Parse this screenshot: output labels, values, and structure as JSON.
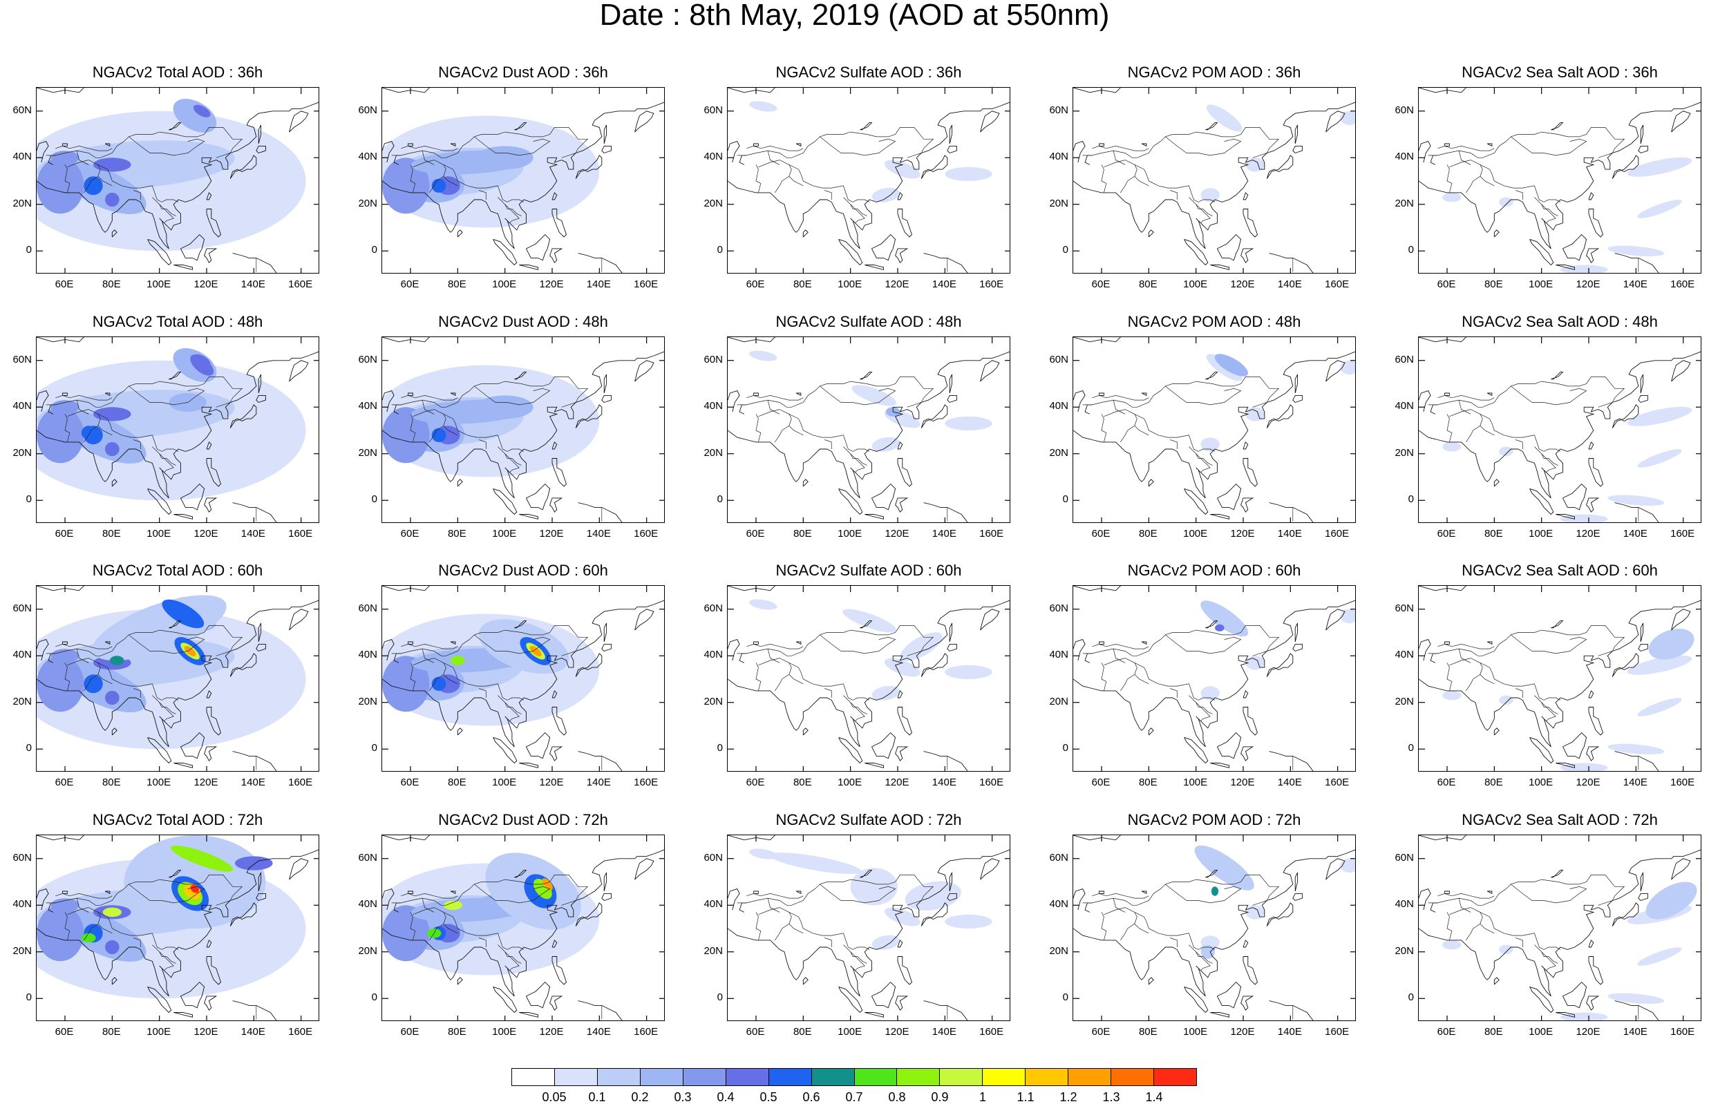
{
  "title": "Date : 8th May, 2019 (AOD at 550nm)",
  "lat_labels": [
    "60N",
    "40N",
    "20N",
    "0"
  ],
  "lon_labels": [
    "60E",
    "80E",
    "100E",
    "120E",
    "140E",
    "160E"
  ],
  "panels": [
    {
      "title": "NGACv2 Total AOD : 36h",
      "species": "total",
      "hour": 36
    },
    {
      "title": "NGACv2 Dust AOD : 36h",
      "species": "dust",
      "hour": 36
    },
    {
      "title": "NGACv2 Sulfate AOD : 36h",
      "species": "sulfate",
      "hour": 36
    },
    {
      "title": "NGACv2 POM AOD : 36h",
      "species": "pom",
      "hour": 36
    },
    {
      "title": "NGACv2 Sea Salt AOD : 36h",
      "species": "seasalt",
      "hour": 36
    },
    {
      "title": "NGACv2 Total AOD : 48h",
      "species": "total",
      "hour": 48
    },
    {
      "title": "NGACv2 Dust AOD : 48h",
      "species": "dust",
      "hour": 48
    },
    {
      "title": "NGACv2 Sulfate AOD : 48h",
      "species": "sulfate",
      "hour": 48
    },
    {
      "title": "NGACv2 POM AOD : 48h",
      "species": "pom",
      "hour": 48
    },
    {
      "title": "NGACv2 Sea Salt AOD : 48h",
      "species": "seasalt",
      "hour": 48
    },
    {
      "title": "NGACv2 Total AOD : 60h",
      "species": "total",
      "hour": 60
    },
    {
      "title": "NGACv2 Dust AOD : 60h",
      "species": "dust",
      "hour": 60
    },
    {
      "title": "NGACv2 Sulfate AOD : 60h",
      "species": "sulfate",
      "hour": 60
    },
    {
      "title": "NGACv2 POM AOD : 60h",
      "species": "pom",
      "hour": 60
    },
    {
      "title": "NGACv2 Sea Salt AOD : 60h",
      "species": "seasalt",
      "hour": 60
    },
    {
      "title": "NGACv2 Total AOD : 72h",
      "species": "total",
      "hour": 72
    },
    {
      "title": "NGACv2 Dust AOD : 72h",
      "species": "dust",
      "hour": 72
    },
    {
      "title": "NGACv2 Sulfate AOD : 72h",
      "species": "sulfate",
      "hour": 72
    },
    {
      "title": "NGACv2 POM AOD : 72h",
      "species": "pom",
      "hour": 72
    },
    {
      "title": "NGACv2 Sea Salt  AOD : 72h",
      "species": "seasalt",
      "hour": 72
    }
  ],
  "colorbar": {
    "labels": [
      "0.05",
      "0.1",
      "0.2",
      "0.3",
      "0.4",
      "0.5",
      "0.6",
      "0.7",
      "0.8",
      "0.9",
      "1",
      "1.1",
      "1.2",
      "1.3",
      "1.4"
    ],
    "colors": [
      "#ffffff",
      "#d9e2fa",
      "#bccdf8",
      "#9fb6f4",
      "#8499ee",
      "#6670e6",
      "#1e64f0",
      "#12908c",
      "#4ee61a",
      "#8cf20e",
      "#c8f83c",
      "#ffff00",
      "#ffc800",
      "#ffa000",
      "#ff6e00",
      "#ff2a14"
    ]
  }
}
